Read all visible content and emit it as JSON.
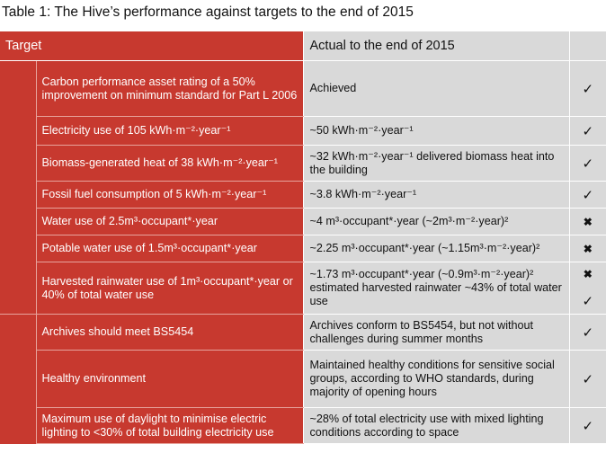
{
  "title": "Table 1: The Hive’s performance against targets to the end of 2015",
  "headers": {
    "target": "Target",
    "actual": "Actual to the end of 2015"
  },
  "rows": [
    {
      "target": "Carbon performance asset rating of a 50% improvement on minimum standard for Part L 2006",
      "actual": "Achieved",
      "marks": [
        "✓"
      ]
    },
    {
      "target": "Electricity use of 105 kWh·m⁻²·year⁻¹",
      "actual": "~50 kWh·m⁻²·year⁻¹",
      "marks": [
        "✓"
      ]
    },
    {
      "target": "Biomass-generated heat of 38 kWh·m⁻²·year⁻¹",
      "actual": "~32 kWh·m⁻²·year⁻¹ delivered biomass heat into the building",
      "marks": [
        "✓"
      ]
    },
    {
      "target": "Fossil fuel consumption of 5 kWh·m⁻²·year⁻¹",
      "actual": "~3.8 kWh·m⁻²·year⁻¹",
      "marks": [
        "✓"
      ]
    },
    {
      "target": "Water use of 2.5m³·occupant*·year",
      "actual": "~4 m³·occupant*·year (~2m³·m⁻²·year)²",
      "marks": [
        "✖"
      ]
    },
    {
      "target": "Potable water use of 1.5m³·occupant*·year",
      "actual": "~2.25 m³·occupant*·year (~1.15m³·m⁻²·year)²",
      "marks": [
        "✖"
      ]
    },
    {
      "target": "Harvested rainwater use of 1m³·occupant*·year or 40% of total water use",
      "actual": "~1.73 m³·occupant*·year (~0.9m³·m⁻²·year)² estimated harvested rainwater ~43% of total water use",
      "marks": [
        "✖",
        "✓"
      ]
    },
    {
      "target": "Archives should meet BS5454",
      "actual": "Archives conform to BS5454, but not without challenges during summer months",
      "marks": [
        "✓"
      ]
    },
    {
      "target": "Healthy environment",
      "actual": "Maintained healthy conditions for sensitive social groups, according to WHO standards, during majority of opening hours",
      "marks": [
        "✓"
      ]
    },
    {
      "target": "Maximum use of daylight to minimise electric lighting to <30% of total building electricity use",
      "actual": "~28% of total electricity use with mixed lighting conditions according to space",
      "marks": [
        "✓"
      ]
    }
  ],
  "colors": {
    "target_bg": "#c7392f",
    "actual_bg": "#d9d9d9",
    "target_text": "#ffffff"
  },
  "icons": {
    "tick": "check-icon",
    "cross": "cross-icon"
  }
}
